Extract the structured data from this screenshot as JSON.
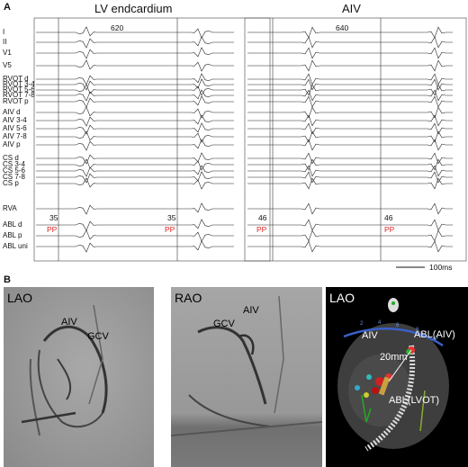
{
  "panel_a": {
    "letter": "A",
    "left_title": "LV endcardium",
    "right_title": "AIV",
    "left_lead_labels": [
      "I",
      "II",
      "V1",
      "V5",
      "RVOT d",
      "RVOT 3-4",
      "RVOT 5-6",
      "RVOT 7-8",
      "RVOT p",
      "AIV d",
      "AIV 3-4",
      "AIV 5-6",
      "AIV 7-8",
      "AIV p",
      "CS d",
      "CS 3-4",
      "CS 5-6",
      "CS 7-8",
      "CS p",
      "RVA",
      "ABL d",
      "ABL p",
      "ABL uni"
    ],
    "left_cycle": "620",
    "right_cycle": "640",
    "left_interval_1": "35",
    "left_interval_2": "35",
    "right_interval_1": "46",
    "right_interval_2": "46",
    "pp_label": "PP",
    "scale_bar": "100ms",
    "colors": {
      "pp": "#d22222"
    }
  },
  "panel_b": {
    "letter": "B",
    "lao_fluoro": {
      "view": "LAO",
      "labels": [
        "AIV",
        "GCV"
      ]
    },
    "rao_fluoro": {
      "view": "RAO",
      "labels": [
        "GCV",
        "AIV"
      ]
    },
    "lao_map": {
      "view": "LAO",
      "labels": [
        "AIV",
        "ABL(AIV)",
        "20mm",
        "ABL(LVOT)"
      ],
      "electrode_numbers": [
        "2",
        "4",
        "6",
        "8",
        "10"
      ]
    }
  }
}
